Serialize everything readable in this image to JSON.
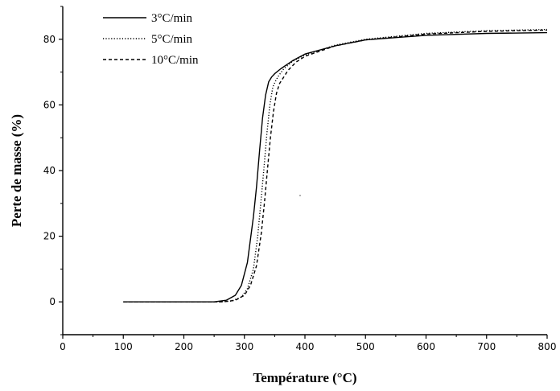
{
  "chart_data": {
    "type": "line",
    "title": "",
    "xlabel": "Température (°C)",
    "ylabel": "Perte de masse (%)",
    "xlim": [
      0,
      800
    ],
    "ylim": [
      -10,
      90
    ],
    "xticks": [
      0,
      100,
      200,
      300,
      400,
      500,
      600,
      700,
      800
    ],
    "yticks": [
      0,
      20,
      40,
      60,
      80
    ],
    "grid": false,
    "legend_position": "top-left",
    "series": [
      {
        "name": "3°C/min",
        "line_style": "solid",
        "color": "#000000",
        "x": [
          100,
          200,
          250,
          270,
          285,
          295,
          305,
          315,
          320,
          325,
          330,
          335,
          340,
          345,
          350,
          360,
          380,
          400,
          450,
          500,
          600,
          700,
          800
        ],
        "y": [
          0,
          0,
          0,
          0.5,
          2,
          5,
          12,
          26,
          35,
          46,
          56,
          63,
          67,
          68.5,
          69.5,
          71,
          73.5,
          75.5,
          78,
          79.8,
          81.2,
          81.8,
          82
        ]
      },
      {
        "name": "5°C/min",
        "line_style": "dotted",
        "color": "#000000",
        "x": [
          100,
          200,
          260,
          280,
          295,
          305,
          315,
          322,
          327,
          332,
          337,
          342,
          347,
          352,
          357,
          365,
          380,
          400,
          450,
          500,
          600,
          700,
          800
        ],
        "y": [
          0,
          0,
          0,
          0.3,
          1.5,
          4,
          10,
          20,
          30,
          40,
          51,
          60,
          65.5,
          67.5,
          69,
          71,
          73.3,
          75.2,
          78.2,
          80,
          81.8,
          82.6,
          83
        ]
      },
      {
        "name": "10°C/min",
        "line_style": "dashed",
        "color": "#000000",
        "x": [
          100,
          200,
          265,
          285,
          300,
          310,
          320,
          328,
          333,
          338,
          343,
          348,
          353,
          358,
          365,
          372,
          385,
          400,
          450,
          500,
          600,
          700,
          800
        ],
        "y": [
          0,
          0,
          0,
          0.5,
          2,
          5,
          11,
          21,
          30,
          40,
          50,
          58,
          63.5,
          66.5,
          68.5,
          70.5,
          73,
          74.8,
          78,
          79.8,
          81.6,
          82.4,
          82.8
        ]
      }
    ]
  }
}
